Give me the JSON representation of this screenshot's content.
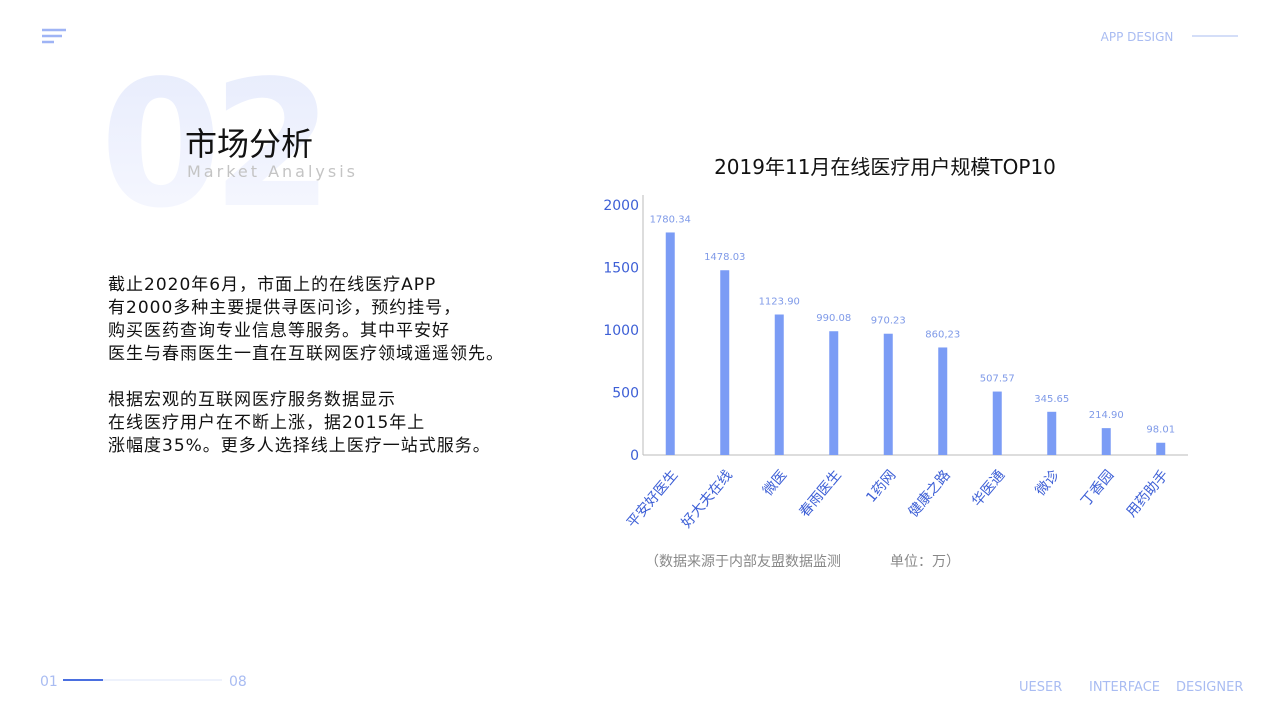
{
  "header": {
    "number": "02",
    "title": "市场分析",
    "subtitle": "Market Analysis",
    "tag": "APP DESIGN"
  },
  "text": {
    "paragraphs": [
      [
        "截止2020年6月，市面上的在线医疗APP",
        "有2000多种主要提供寻医问诊，预约挂号，",
        "购买医药查询专业信息等服务。其中平安好",
        "医生与春雨医生一直在互联网医疗领域遥遥领先。"
      ],
      [
        "根据宏观的互联网医疗服务数据显示",
        "在线医疗用户在不断上涨，据2015年上",
        "涨幅度35%。更多人选择线上医疗一站式服务。"
      ]
    ]
  },
  "chart_data": {
    "type": "bar",
    "title": "2019年11月在线医疗用户规模TOP10",
    "categories": [
      "平安好医生",
      "好大夫在线",
      "微医",
      "春雨医生",
      "1药网",
      "健康之路",
      "华医通",
      "微诊",
      "丁香园",
      "用药助手"
    ],
    "values": [
      1780.34,
      1478.03,
      1123.9,
      990.08,
      970.23,
      860.23,
      507.57,
      345.65,
      214.9,
      98.01
    ],
    "value_labels": [
      "1780.34",
      "1478.03",
      "1123.90",
      "990.08",
      "970.23",
      "860,23",
      "507.57",
      "345.65",
      "214.90",
      "98.01"
    ],
    "color": "#7b9cf5",
    "ylim": [
      0,
      2000
    ],
    "yticks": [
      0,
      500,
      1000,
      1500,
      2000
    ],
    "grid": false,
    "note": [
      "（数据来源于内部友盟数据监测",
      "单位：万）"
    ]
  },
  "footer": {
    "page": "01",
    "total": "08",
    "words": [
      "UESER",
      "INTERFACE",
      "DESIGNER"
    ]
  }
}
